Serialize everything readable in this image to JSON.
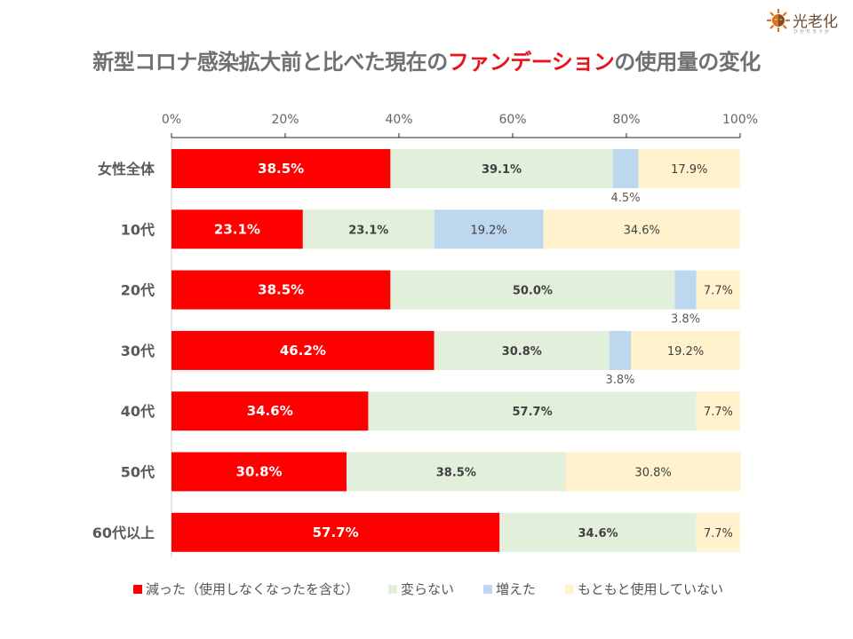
{
  "title": {
    "prefix": "新型コロナ感染拡大前と比べた現在の",
    "highlight": "ファンデーション",
    "suffix": "の使用量の変化"
  },
  "logo": {
    "brand": "光老化",
    "sub": "ひかりろうか",
    "icon": "sun-face-icon"
  },
  "colors": {
    "decreased": "#ff0000",
    "unchanged": "#e2efda",
    "increased": "#bdd7ee",
    "never": "#fff2cc"
  },
  "chart_data": {
    "type": "bar",
    "orientation": "horizontal",
    "stacked": true,
    "title": "新型コロナ感染拡大前と比べた現在のファンデーションの使用量の変化",
    "xlabel": "",
    "ylabel": "",
    "xlim": [
      0,
      100
    ],
    "x_ticks": [
      "0%",
      "20%",
      "40%",
      "60%",
      "80%",
      "100%"
    ],
    "grid": false,
    "legend_position": "bottom",
    "categories": [
      "女性全体",
      "10代",
      "20代",
      "30代",
      "40代",
      "50代",
      "60代以上"
    ],
    "series": [
      {
        "name": "減った（使用しなくなったを含む）",
        "key": "decreased",
        "values": [
          38.5,
          23.1,
          38.5,
          46.2,
          34.6,
          30.8,
          57.7
        ]
      },
      {
        "name": "変らない",
        "key": "unchanged",
        "values": [
          39.1,
          23.1,
          50.0,
          30.8,
          57.7,
          38.5,
          34.6
        ]
      },
      {
        "name": "増えた",
        "key": "increased",
        "values": [
          4.5,
          19.2,
          3.8,
          3.8,
          0,
          0,
          0
        ]
      },
      {
        "name": "もともと使用していない",
        "key": "never",
        "values": [
          17.9,
          34.6,
          7.7,
          19.2,
          7.7,
          30.8,
          7.7
        ]
      }
    ]
  }
}
